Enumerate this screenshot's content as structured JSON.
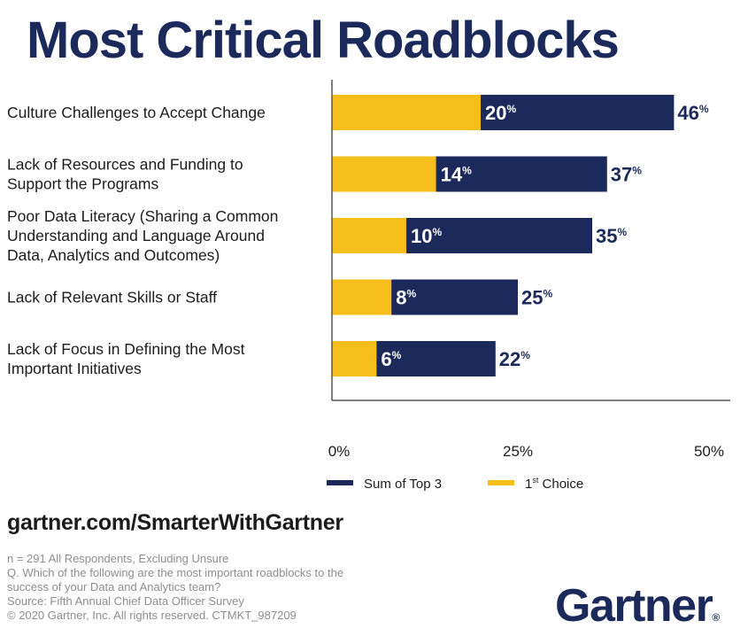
{
  "title": "Most Critical Roadblocks",
  "url": "gartner.com/SmarterWithGartner",
  "notes": [
    "n = 291 All Respondents, Excluding Unsure",
    "Q. Which of the following are the most important roadblocks to the",
    "success of your Data and Analytics team?",
    "Source: Fifth Annual Chief Data Officer Survey",
    "© 2020 Gartner, Inc. All rights reserved. CTMKT_987209"
  ],
  "logo": "Gartner",
  "logo_mark": "®",
  "colors": {
    "navy": "#1b2a5b",
    "gold": "#f6be1a",
    "axis": "#555555",
    "text": "#1c1c1c"
  },
  "chart_data": {
    "type": "bar",
    "orientation": "horizontal",
    "categories": [
      "Culture Challenges to Accept Change",
      "Lack of Resources and Funding to\nSupport the Programs",
      "Poor Data Literacy (Sharing a Common\nUnderstanding and Language Around\nData, Analytics and Outcomes)",
      "Lack of Relevant Skills or Staff",
      "Lack of Focus in Defining the Most\nImportant Initiatives"
    ],
    "series": [
      {
        "name": "Sum of Top 3",
        "color": "#1b2a5b",
        "values": [
          46,
          37,
          35,
          25,
          22
        ],
        "labels": [
          "46",
          "37",
          "35",
          "25",
          "22"
        ]
      },
      {
        "name": "1st Choice",
        "color": "#f6be1a",
        "values": [
          20,
          14,
          10,
          8,
          6
        ],
        "labels": [
          "20",
          "14",
          "10",
          "8",
          "6"
        ]
      }
    ],
    "label_suffix": "%",
    "xlim": [
      0,
      50
    ],
    "xticks": [
      0,
      25,
      50
    ],
    "xtick_labels": [
      "0%",
      "25%",
      "50%"
    ],
    "first_choice_prefix": "1",
    "first_choice_sup": "st",
    "first_choice_rest": " Choice",
    "legend_position": "bottom-center",
    "grid": false
  }
}
